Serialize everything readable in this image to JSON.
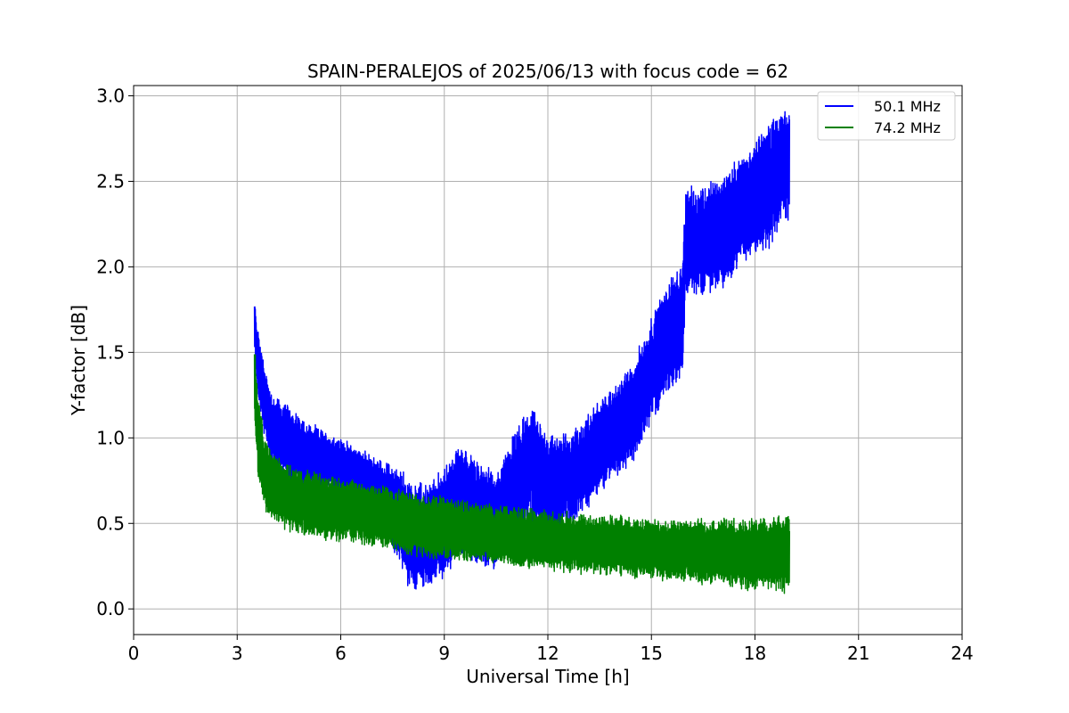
{
  "chart_data": {
    "type": "line",
    "title": "SPAIN-PERALEJOS of 2025/06/13 with focus code = 62",
    "xlabel": "Universal Time [h]",
    "ylabel": "Y-factor [dB]",
    "xlim": [
      0,
      24
    ],
    "ylim": [
      -0.15,
      3.06
    ],
    "xticks": [
      0,
      3,
      6,
      9,
      12,
      15,
      18,
      21,
      24
    ],
    "yticks": [
      0.0,
      0.5,
      1.0,
      1.5,
      2.0,
      2.5,
      3.0
    ],
    "xtick_labels": [
      "0",
      "3",
      "6",
      "9",
      "12",
      "15",
      "18",
      "21",
      "24"
    ],
    "ytick_labels": [
      "0.0",
      "0.5",
      "1.0",
      "1.5",
      "2.0",
      "2.5",
      "3.0"
    ],
    "grid": true,
    "legend_position": "top-right",
    "series": [
      {
        "name": "50.1 MHz",
        "color": "#0000ff",
        "x": [
          3.5,
          3.6,
          3.8,
          4.0,
          4.3,
          4.6,
          5.0,
          5.5,
          6.0,
          6.5,
          7.0,
          7.5,
          8.0,
          8.5,
          9.0,
          9.5,
          10.0,
          10.5,
          11.0,
          11.5,
          12.0,
          12.5,
          13.0,
          13.5,
          14.0,
          14.5,
          15.0,
          15.5,
          15.9,
          16.0,
          16.5,
          17.0,
          17.5,
          18.0,
          18.5,
          18.8,
          19.0
        ],
        "y_center": [
          1.65,
          1.45,
          1.2,
          1.05,
          1.0,
          0.95,
          0.9,
          0.87,
          0.83,
          0.78,
          0.72,
          0.6,
          0.45,
          0.42,
          0.5,
          0.65,
          0.55,
          0.52,
          0.7,
          0.85,
          0.7,
          0.75,
          0.82,
          0.95,
          1.05,
          1.15,
          1.4,
          1.6,
          1.7,
          2.15,
          2.15,
          2.2,
          2.3,
          2.4,
          2.5,
          2.6,
          2.6
        ],
        "y_spread": [
          0.15,
          0.18,
          0.2,
          0.2,
          0.2,
          0.2,
          0.18,
          0.16,
          0.15,
          0.15,
          0.15,
          0.22,
          0.3,
          0.28,
          0.3,
          0.3,
          0.28,
          0.25,
          0.3,
          0.3,
          0.3,
          0.25,
          0.25,
          0.25,
          0.25,
          0.28,
          0.28,
          0.3,
          0.3,
          0.28,
          0.3,
          0.3,
          0.3,
          0.3,
          0.35,
          0.3,
          0.3
        ]
      },
      {
        "name": "74.2 MHz",
        "color": "#008000",
        "x": [
          3.5,
          3.6,
          3.8,
          4.0,
          4.5,
          5.0,
          6.0,
          7.0,
          8.0,
          9.0,
          10.0,
          11.0,
          12.0,
          13.0,
          14.0,
          15.0,
          16.0,
          17.0,
          18.0,
          19.0
        ],
        "y_center": [
          1.35,
          1.0,
          0.8,
          0.72,
          0.65,
          0.62,
          0.58,
          0.55,
          0.5,
          0.47,
          0.45,
          0.42,
          0.4,
          0.38,
          0.37,
          0.35,
          0.34,
          0.33,
          0.32,
          0.32
        ],
        "y_spread": [
          0.2,
          0.22,
          0.2,
          0.18,
          0.18,
          0.18,
          0.17,
          0.17,
          0.17,
          0.17,
          0.16,
          0.16,
          0.16,
          0.16,
          0.16,
          0.16,
          0.17,
          0.18,
          0.2,
          0.2
        ]
      }
    ]
  }
}
